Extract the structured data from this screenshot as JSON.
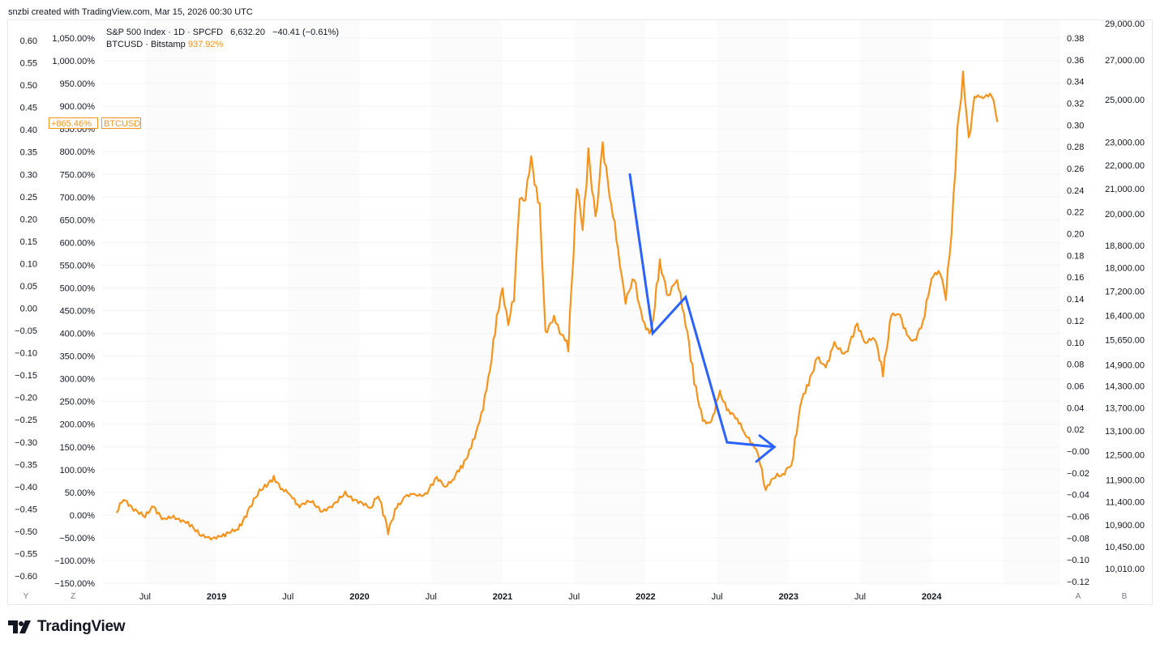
{
  "credit": "snzbi created with TradingView.com, Mar 15, 2026 00:30 UTC",
  "legend": {
    "sp500_label": "S&P 500 Index · 1D · SPCFD",
    "sp500_price": "6,632.20",
    "sp500_change": "−40.41 (−0.61%)",
    "btc_label": "BTCUSD · Bitstamp",
    "btc_value": "937.92%"
  },
  "tags": {
    "btc_pct": "+865.46%",
    "btc_symbol": "BTCUSD"
  },
  "corner_buttons": {
    "y": "Y",
    "z": "Z",
    "a": "A",
    "b": "B"
  },
  "brand": "TradingView",
  "colors": {
    "btc": "#f7931a",
    "annotation": "#2962ff",
    "grid": "#f0f3fa"
  },
  "chart_data": {
    "type": "line",
    "title": "S&P 500 Index vs BTCUSD (percent)",
    "time_range": [
      "2018-04",
      "2024-12"
    ],
    "x_tick_labels": [
      "Jul",
      "2019",
      "Jul",
      "2020",
      "Jul",
      "2021",
      "Jul",
      "2022",
      "Jul",
      "2023",
      "Jul",
      "2024"
    ],
    "axis_far_left": {
      "ticks": [
        "0.60",
        "0.55",
        "0.50",
        "0.45",
        "0.40",
        "0.35",
        "0.30",
        "0.25",
        "0.20",
        "0.15",
        "0.10",
        "0.05",
        "0.00",
        "−0.05",
        "−0.10",
        "−0.15",
        "−0.20",
        "−0.25",
        "−0.30",
        "−0.35",
        "−0.40",
        "−0.45",
        "−0.50",
        "−0.55",
        "−0.60"
      ],
      "range": [
        -0.6,
        0.6
      ]
    },
    "axis_left_percent": {
      "ticks": [
        "1,050.00%",
        "1,000.00%",
        "950.00%",
        "900.00%",
        "850.00%",
        "800.00%",
        "750.00%",
        "700.00%",
        "650.00%",
        "600.00%",
        "550.00%",
        "500.00%",
        "450.00%",
        "400.00%",
        "350.00%",
        "300.00%",
        "250.00%",
        "200.00%",
        "150.00%",
        "100.00%",
        "50.00%",
        "0.00%",
        "−50.00%",
        "−100.00%",
        "−150.00%"
      ],
      "range": [
        -150,
        1050
      ]
    },
    "axis_right_inner": {
      "ticks": [
        "0.38",
        "0.36",
        "0.34",
        "0.32",
        "0.30",
        "0.28",
        "0.26",
        "0.24",
        "0.22",
        "0.20",
        "0.18",
        "0.16",
        "0.14",
        "0.12",
        "0.10",
        "0.08",
        "0.06",
        "0.04",
        "0.02",
        "−0.00",
        "−0.02",
        "−0.04",
        "−0.06",
        "−0.08",
        "−0.10",
        "−0.12"
      ],
      "range": [
        -0.12,
        0.38
      ]
    },
    "axis_right_price": {
      "ticks": [
        "29,000.00",
        "27,000.00",
        "25,000.00",
        "23,000.00",
        "22,000.00",
        "21,000.00",
        "20,000.00",
        "18,800.00",
        "18,000.00",
        "17,200.00",
        "16,400.00",
        "15,650.00",
        "14,900.00",
        "14,300.00",
        "13,700.00",
        "13,100.00",
        "12,500.00",
        "11,900.00",
        "11,400.00",
        "10,900.00",
        "10,450.00",
        "10,010.00"
      ],
      "scale": "log"
    },
    "series": [
      {
        "name": "BTCUSD",
        "unit": "percent",
        "t": [
          2018.3,
          2018.35,
          2018.42,
          2018.5,
          2018.56,
          2018.63,
          2018.7,
          2018.8,
          2018.88,
          2018.96,
          2019.06,
          2019.15,
          2019.22,
          2019.3,
          2019.4,
          2019.46,
          2019.52,
          2019.58,
          2019.66,
          2019.74,
          2019.82,
          2019.9,
          2019.98,
          2020.08,
          2020.13,
          2020.2,
          2020.26,
          2020.32,
          2020.38,
          2020.46,
          2020.54,
          2020.6,
          2020.66,
          2020.72,
          2020.78,
          2020.84,
          2020.9,
          2020.96,
          2021.0,
          2021.04,
          2021.08,
          2021.12,
          2021.16,
          2021.2,
          2021.26,
          2021.3,
          2021.36,
          2021.4,
          2021.46,
          2021.52,
          2021.56,
          2021.6,
          2021.65,
          2021.7,
          2021.76,
          2021.82,
          2021.86,
          2021.92,
          2021.98,
          2022.04,
          2022.1,
          2022.16,
          2022.22,
          2022.28,
          2022.34,
          2022.4,
          2022.46,
          2022.52,
          2022.58,
          2022.64,
          2022.7,
          2022.76,
          2022.8,
          2022.84,
          2022.88,
          2022.92,
          2022.96,
          2023.02,
          2023.08,
          2023.14,
          2023.2,
          2023.26,
          2023.32,
          2023.4,
          2023.48,
          2023.54,
          2023.6,
          2023.66,
          2023.72,
          2023.78,
          2023.84,
          2023.88,
          2023.94,
          2024.0,
          2024.06,
          2024.1,
          2024.14,
          2024.18,
          2024.22,
          2024.26,
          2024.3,
          2024.36,
          2024.42,
          2024.46
        ],
        "values": [
          5,
          35,
          15,
          -5,
          20,
          -10,
          -5,
          -15,
          -45,
          -50,
          -45,
          -30,
          10,
          50,
          85,
          55,
          45,
          20,
          30,
          10,
          20,
          50,
          30,
          15,
          50,
          -40,
          20,
          40,
          45,
          45,
          80,
          65,
          80,
          110,
          150,
          200,
          300,
          430,
          500,
          420,
          480,
          700,
          690,
          790,
          670,
          400,
          440,
          400,
          380,
          720,
          630,
          800,
          640,
          820,
          680,
          560,
          470,
          520,
          430,
          390,
          560,
          480,
          520,
          430,
          290,
          210,
          200,
          270,
          230,
          210,
          180,
          150,
          120,
          55,
          75,
          90,
          85,
          115,
          240,
          290,
          350,
          320,
          380,
          350,
          420,
          380,
          390,
          320,
          440,
          440,
          390,
          380,
          430,
          520,
          540,
          480,
          620,
          850,
          960,
          830,
          920,
          920,
          930,
          865
        ]
      },
      {
        "name": "Annotation arrow",
        "unit": "percent",
        "t": [
          2021.89,
          2022.05,
          2022.28,
          2022.57,
          2022.9
        ],
        "values": [
          750,
          400,
          480,
          160,
          150
        ]
      }
    ]
  }
}
